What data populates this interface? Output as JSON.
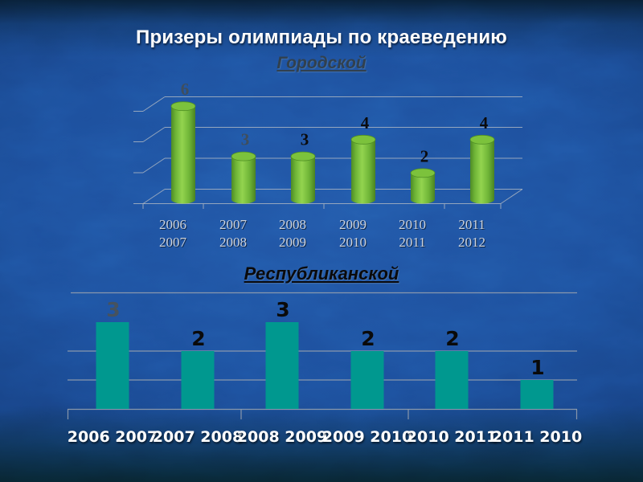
{
  "slide": {
    "title": "Призеры олимпиады по краеведению",
    "background_color": "#1d509e"
  },
  "chart_data": [
    {
      "type": "bar",
      "style": "3d-cylinder",
      "title": "Городской",
      "categories": [
        [
          "2006",
          "2007"
        ],
        [
          "2007",
          "2008"
        ],
        [
          "2008",
          "2009"
        ],
        [
          "2009",
          "2010"
        ],
        [
          "2010",
          "2011"
        ],
        [
          "2011",
          "2012"
        ]
      ],
      "values": [
        6,
        3,
        3,
        4,
        2,
        4
      ],
      "ylim": [
        0,
        6
      ],
      "gridline_values": [
        0,
        2,
        4,
        6
      ],
      "grid_on": true,
      "legend": "none",
      "bar_color": "#7cc23c",
      "bar_edge_color": "#4f8f25",
      "value_label_colors": [
        "#3f4e5d",
        "#3f4e5d",
        "#0b0b0d",
        "#0b0b0d",
        "#0b0b0d",
        "#0b0b0d"
      ],
      "category_label_color": "#ccd3dd"
    },
    {
      "type": "bar",
      "style": "flat",
      "title": "Республиканской",
      "categories": [
        "2006 2007",
        "2007 2008",
        "2008 2009",
        "2009 2010",
        "2010 2011",
        "2011 2010"
      ],
      "values": [
        3,
        2,
        3,
        2,
        2,
        1
      ],
      "ylim": [
        0,
        4
      ],
      "gridline_values": [
        1,
        2,
        4
      ],
      "grid_on": true,
      "legend": "none",
      "bar_color": "#00988f",
      "value_label_colors": [
        "#46525e",
        "#0a0a0a",
        "#0a0a0a",
        "#0a0a0a",
        "#0a0a0a",
        "#0a0a0a"
      ],
      "category_label_color": "#ffffff"
    }
  ]
}
